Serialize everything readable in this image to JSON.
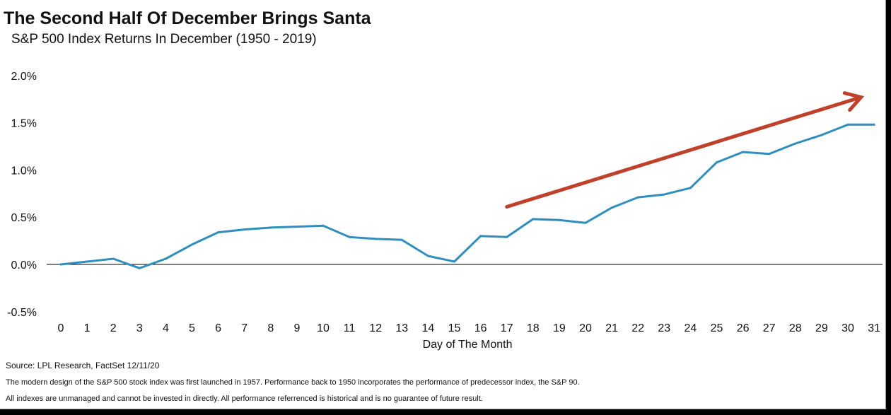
{
  "chart_data": {
    "type": "line",
    "title": "The Second Half Of December Brings Santa",
    "subtitle": "S&P 500 Index Returns In December (1950 - 2019)",
    "xlabel": "Day of The Month",
    "ylabel": "",
    "x": [
      0,
      1,
      2,
      3,
      4,
      5,
      6,
      7,
      8,
      9,
      10,
      11,
      12,
      13,
      14,
      15,
      16,
      17,
      18,
      19,
      20,
      21,
      22,
      23,
      24,
      25,
      26,
      27,
      28,
      29,
      30,
      31
    ],
    "ylim": [
      -0.5,
      2.0
    ],
    "yticks": [
      2.0,
      1.5,
      1.0,
      0.5,
      0.0,
      -0.5
    ],
    "ytick_labels": [
      "2.0%",
      "1.5%",
      "1.0%",
      "0.5%",
      "0.0%",
      "-0.5%"
    ],
    "grid": false,
    "series": [
      {
        "color": "#2e8fbf",
        "values": [
          0.0,
          0.03,
          0.06,
          -0.04,
          0.06,
          0.21,
          0.34,
          0.37,
          0.39,
          0.4,
          0.41,
          0.29,
          0.27,
          0.26,
          0.09,
          0.03,
          0.3,
          0.29,
          0.48,
          0.47,
          0.44,
          0.6,
          0.71,
          0.74,
          0.81,
          1.08,
          1.19,
          1.17,
          1.28,
          1.37,
          1.48,
          1.48
        ]
      }
    ],
    "annotation": {
      "type": "trend-arrow",
      "color": "#c0402a",
      "from": {
        "x": 17,
        "y": 0.61
      },
      "to": {
        "x": 30.5,
        "y": 1.77
      }
    }
  },
  "footer": {
    "source": "Source: LPL Research, FactSet 12/11/20",
    "note1": "The modern design of the S&P 500 stock index was first launched in 1957. Performance back to 1950 incorporates the performance of predecessor index, the S&P 90.",
    "note2": "All indexes are unmanaged and cannot be invested in directly. All performance referrenced is historical and is no guarantee of future result."
  }
}
